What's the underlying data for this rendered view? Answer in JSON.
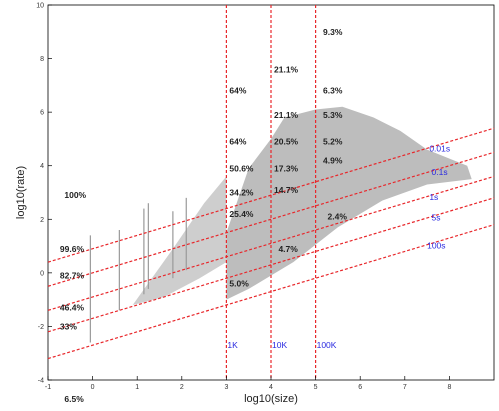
{
  "chart_data": {
    "type": "scatter",
    "xlabel": "log10(size)",
    "ylabel": "log10(rate)",
    "xlim": [
      -1,
      9
    ],
    "ylim": [
      -4,
      10
    ],
    "x_ticks": [
      "-1",
      "0",
      "1",
      "2",
      "3",
      "4",
      "5",
      "6",
      "7",
      "8"
    ],
    "y_ticks": [
      "-4",
      "-2",
      "0",
      "2",
      "4",
      "6",
      "8",
      "10"
    ],
    "point_cloud": {
      "color": "#bdbdbd",
      "polygon": [
        [
          3.0,
          -1.0
        ],
        [
          3.0,
          1.5
        ],
        [
          3.5,
          3.9
        ],
        [
          4.0,
          5.0
        ],
        [
          4.3,
          5.8
        ],
        [
          5.0,
          6.1
        ],
        [
          5.6,
          6.2
        ],
        [
          6.3,
          5.8
        ],
        [
          6.9,
          5.3
        ],
        [
          7.5,
          4.6
        ],
        [
          8.4,
          4.0
        ],
        [
          8.5,
          3.5
        ],
        [
          7.5,
          3.3
        ],
        [
          6.5,
          2.7
        ],
        [
          5.5,
          1.7
        ],
        [
          4.5,
          0.4
        ],
        [
          3.5,
          -0.6
        ]
      ],
      "tail_polygon": [
        [
          0.9,
          -1.2
        ],
        [
          1.8,
          0.9
        ],
        [
          2.5,
          2.6
        ],
        [
          3.0,
          3.6
        ],
        [
          3.0,
          0.4
        ],
        [
          2.4,
          -0.2
        ],
        [
          1.6,
          -0.9
        ]
      ],
      "spikes": [
        [
          -0.05,
          -2.6,
          -0.05,
          1.4
        ],
        [
          0.6,
          -1.4,
          0.6,
          1.6
        ],
        [
          1.15,
          -0.8,
          1.15,
          2.4
        ],
        [
          1.25,
          -0.6,
          1.25,
          2.6
        ],
        [
          1.8,
          -0.2,
          1.8,
          2.3
        ],
        [
          2.1,
          0.1,
          2.1,
          2.8
        ]
      ]
    },
    "diagonal_lines": [
      {
        "label": "0.01s",
        "slope": 0.5,
        "intercept": 0.9
      },
      {
        "label": "0.1s",
        "slope": 0.5,
        "intercept": 0.0
      },
      {
        "label": "1s",
        "slope": 0.5,
        "intercept": -0.9
      },
      {
        "label": "5s",
        "slope": 0.5,
        "intercept": -1.7
      },
      {
        "label": "100s",
        "slope": 0.5,
        "intercept": -2.7
      }
    ],
    "vertical_lines": [
      {
        "label": "1K",
        "x": 3.0
      },
      {
        "label": "10K",
        "x": 4.0
      },
      {
        "label": "100K",
        "x": 5.0
      }
    ],
    "line_color": "#e8272b",
    "label_color": "#2a2ae0",
    "annotations": [
      {
        "text": "9.3%",
        "x": 5.1,
        "y": 9.0
      },
      {
        "text": "21.1%",
        "x": 4.0,
        "y": 7.6
      },
      {
        "text": "64%",
        "x": 3.0,
        "y": 6.8
      },
      {
        "text": "6.3%",
        "x": 5.1,
        "y": 6.8
      },
      {
        "text": "21.1%",
        "x": 4.0,
        "y": 5.9
      },
      {
        "text": "5.3%",
        "x": 5.1,
        "y": 5.9
      },
      {
        "text": "64%",
        "x": 3.0,
        "y": 4.9
      },
      {
        "text": "20.5%",
        "x": 4.0,
        "y": 4.9
      },
      {
        "text": "5.2%",
        "x": 5.1,
        "y": 4.9
      },
      {
        "text": "50.6%",
        "x": 3.0,
        "y": 3.9
      },
      {
        "text": "17.3%",
        "x": 4.0,
        "y": 3.9
      },
      {
        "text": "4.9%",
        "x": 5.1,
        "y": 4.2
      },
      {
        "text": "34.2%",
        "x": 3.0,
        "y": 3.0
      },
      {
        "text": "14.7%",
        "x": 4.0,
        "y": 3.1
      },
      {
        "text": "25.4%",
        "x": 3.0,
        "y": 2.2
      },
      {
        "text": "2.4%",
        "x": 5.2,
        "y": 2.1
      },
      {
        "text": "4.7%",
        "x": 4.1,
        "y": 0.9
      },
      {
        "text": "5.0%",
        "x": 3.0,
        "y": -0.4
      },
      {
        "text": "100%",
        "x": -0.7,
        "y": 2.9
      },
      {
        "text": "99.6%",
        "x": -0.8,
        "y": 0.9
      },
      {
        "text": "82.7%",
        "x": -0.8,
        "y": -0.1
      },
      {
        "text": "46.4%",
        "x": -0.8,
        "y": -1.3
      },
      {
        "text": "33%",
        "x": -0.8,
        "y": -2.0
      },
      {
        "text": "6.5%",
        "x": -0.7,
        "y": -4.7
      }
    ]
  }
}
